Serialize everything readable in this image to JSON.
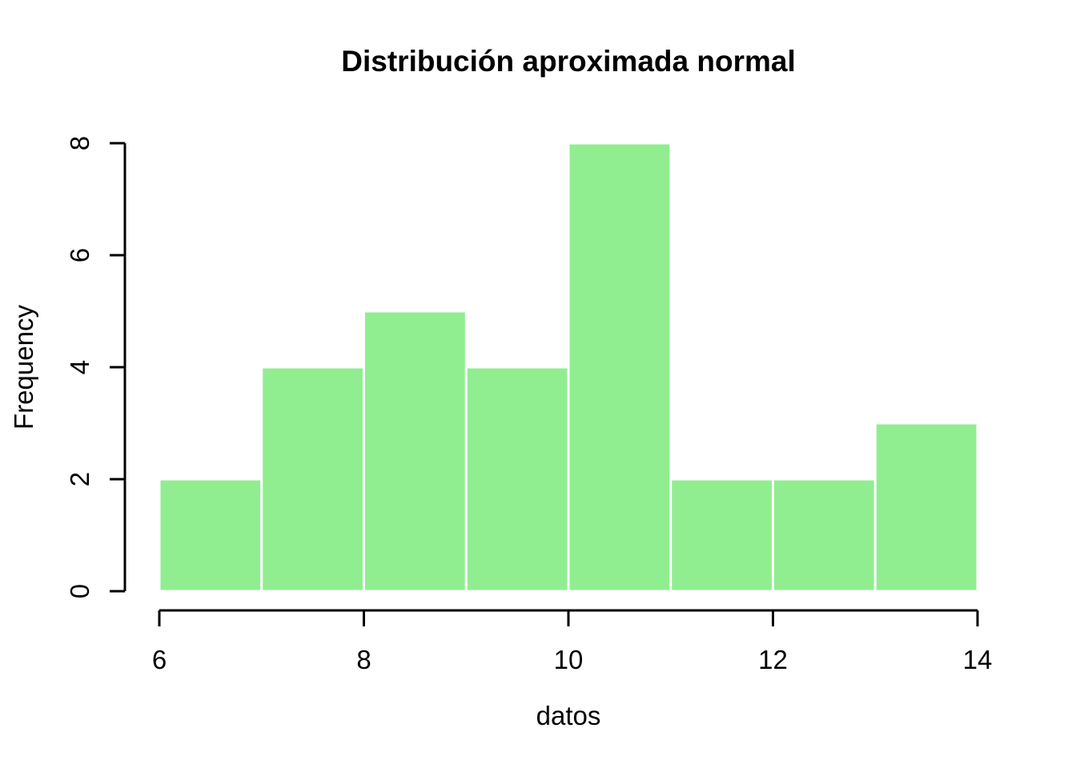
{
  "title": "Distribución aproximada normal",
  "chart_data": {
    "type": "bar",
    "subtype": "histogram",
    "title": "Distribución aproximada normal",
    "xlabel": "datos",
    "ylabel": "Frequency",
    "bin_edges": [
      6,
      7,
      8,
      9,
      10,
      11,
      12,
      13,
      14
    ],
    "counts": [
      2,
      4,
      5,
      4,
      8,
      2,
      2,
      3
    ],
    "x_ticks": [
      6,
      8,
      10,
      12,
      14
    ],
    "y_ticks": [
      0,
      2,
      4,
      6,
      8
    ],
    "xlim": [
      6,
      14
    ],
    "ylim": [
      0,
      8
    ],
    "grid": false,
    "legend": null,
    "colors": {
      "bar_fill": "#90EE90",
      "bar_border": "#FFFFFF",
      "axis": "#000000",
      "text": "#000000",
      "background": "#FFFFFF"
    }
  }
}
